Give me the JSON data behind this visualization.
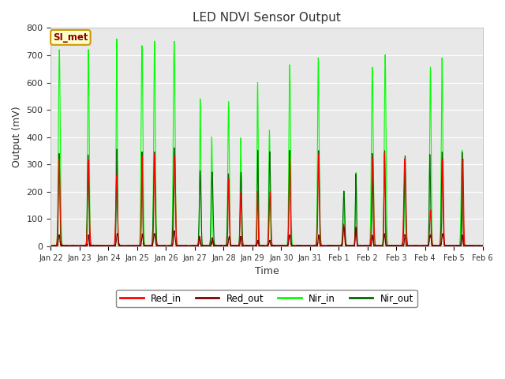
{
  "title": "LED NDVI Sensor Output",
  "xlabel": "Time",
  "ylabel": "Output (mV)",
  "ylim": [
    0,
    800
  ],
  "fig_bg_color": "#ffffff",
  "plot_bg_color": "#e8e8e8",
  "legend_label": "SI_met",
  "legend_bg": "#ffffcc",
  "legend_border": "#cc9900",
  "series": {
    "Red_in": {
      "color": "#ff0000",
      "lw": 0.8
    },
    "Red_out": {
      "color": "#800000",
      "lw": 0.8
    },
    "Nir_in": {
      "color": "#00ff00",
      "lw": 0.8
    },
    "Nir_out": {
      "color": "#006600",
      "lw": 0.8
    }
  },
  "date_labels": [
    "Jan 22",
    "Jan 23",
    "Jan 24",
    "Jan 25",
    "Jan 26",
    "Jan 27",
    "Jan 28",
    "Jan 29",
    "Jan 30",
    "Jan 31",
    "Feb 1",
    "Feb 2",
    "Feb 3",
    "Feb 4",
    "Feb 5",
    "Feb 6"
  ],
  "num_days": 15,
  "seed": 42,
  "nir_in_peaks": [
    [
      720
    ],
    [
      720
    ],
    [
      760
    ],
    [
      735,
      750
    ],
    [
      750
    ],
    [
      540,
      400
    ],
    [
      530,
      395
    ],
    [
      600,
      425
    ],
    [
      665
    ],
    [
      690
    ],
    [
      200,
      270
    ],
    [
      655,
      700
    ],
    [
      265
    ],
    [
      655,
      690
    ],
    [
      350
    ]
  ],
  "nir_out_peaks": [
    [
      340
    ],
    [
      335
    ],
    [
      355
    ],
    [
      345,
      345
    ],
    [
      360
    ],
    [
      275,
      270
    ],
    [
      265,
      270
    ],
    [
      350,
      345
    ],
    [
      350
    ],
    [
      350
    ],
    [
      200,
      265
    ],
    [
      340,
      350
    ],
    [
      330
    ],
    [
      335,
      345
    ],
    [
      345
    ]
  ],
  "red_in_peaks": [
    [
      320
    ],
    [
      315
    ],
    [
      260
    ],
    [
      330,
      335
    ],
    [
      330
    ],
    [
      35,
      30
    ],
    [
      245,
      195
    ],
    [
      200,
      200
    ],
    [
      325
    ],
    [
      335
    ],
    [
      80,
      70
    ],
    [
      325,
      340
    ],
    [
      320
    ],
    [
      130,
      320
    ],
    [
      320
    ]
  ],
  "red_out_peaks": [
    [
      40
    ],
    [
      40
    ],
    [
      45
    ],
    [
      45,
      45
    ],
    [
      55
    ],
    [
      32,
      30
    ],
    [
      35,
      35
    ],
    [
      20,
      20
    ],
    [
      40
    ],
    [
      40
    ],
    [
      70,
      65
    ],
    [
      40,
      45
    ],
    [
      40
    ],
    [
      40,
      45
    ],
    [
      40
    ]
  ]
}
